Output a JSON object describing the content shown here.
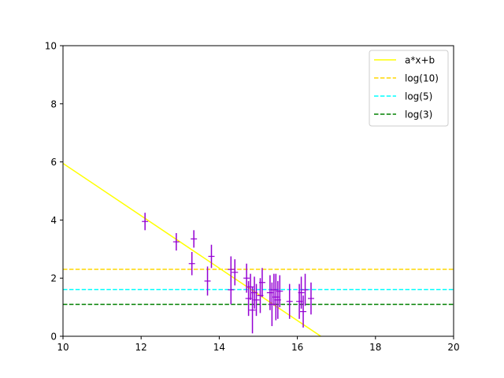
{
  "chart_data": {
    "type": "scatter",
    "title": "",
    "xlabel": "",
    "ylabel": "",
    "xlim": [
      10,
      20
    ],
    "ylim": [
      0,
      10
    ],
    "xticks": [
      10,
      12,
      14,
      16,
      18,
      20
    ],
    "yticks": [
      0,
      2,
      4,
      6,
      8,
      10
    ],
    "grid": false,
    "legend_position": "top-right",
    "fit_line": {
      "name": "a*x+b",
      "color": "#ffff00",
      "x": [
        10,
        16.6
      ],
      "y": [
        5.95,
        0.0
      ]
    },
    "hlines": [
      {
        "name": "log(10)",
        "value": 2.303,
        "color": "#ffd700",
        "style": "dashed"
      },
      {
        "name": "log(5)",
        "value": 1.609,
        "color": "#00ffff",
        "style": "dashed"
      },
      {
        "name": "log(3)",
        "value": 1.099,
        "color": "#008000",
        "style": "dashed"
      }
    ],
    "errorbar_series": {
      "color": "#9400d3",
      "points": [
        {
          "x": 12.1,
          "y": 3.95,
          "err": 0.3
        },
        {
          "x": 12.9,
          "y": 3.25,
          "err": 0.3
        },
        {
          "x": 13.3,
          "y": 2.5,
          "err": 0.4
        },
        {
          "x": 13.35,
          "y": 3.35,
          "err": 0.3
        },
        {
          "x": 13.7,
          "y": 1.9,
          "err": 0.5
        },
        {
          "x": 13.8,
          "y": 2.75,
          "err": 0.4
        },
        {
          "x": 14.3,
          "y": 1.6,
          "err": 0.5
        },
        {
          "x": 14.3,
          "y": 2.3,
          "err": 0.45
        },
        {
          "x": 14.4,
          "y": 2.2,
          "err": 0.45
        },
        {
          "x": 14.7,
          "y": 2.0,
          "err": 0.5
        },
        {
          "x": 14.75,
          "y": 1.3,
          "err": 0.6
        },
        {
          "x": 14.8,
          "y": 1.7,
          "err": 0.45
        },
        {
          "x": 14.85,
          "y": 0.9,
          "err": 0.8
        },
        {
          "x": 14.9,
          "y": 1.5,
          "err": 0.55
        },
        {
          "x": 14.95,
          "y": 1.25,
          "err": 0.55
        },
        {
          "x": 15.05,
          "y": 1.4,
          "err": 0.6
        },
        {
          "x": 15.1,
          "y": 1.85,
          "err": 0.5
        },
        {
          "x": 15.3,
          "y": 1.5,
          "err": 0.6
        },
        {
          "x": 15.35,
          "y": 1.1,
          "err": 0.75
        },
        {
          "x": 15.4,
          "y": 1.6,
          "err": 0.55
        },
        {
          "x": 15.45,
          "y": 1.35,
          "err": 0.8
        },
        {
          "x": 15.5,
          "y": 1.25,
          "err": 0.65
        },
        {
          "x": 15.55,
          "y": 1.55,
          "err": 0.55
        },
        {
          "x": 15.8,
          "y": 1.2,
          "err": 0.6
        },
        {
          "x": 16.05,
          "y": 1.2,
          "err": 0.6
        },
        {
          "x": 16.1,
          "y": 1.5,
          "err": 0.55
        },
        {
          "x": 16.15,
          "y": 0.85,
          "err": 0.55
        },
        {
          "x": 16.2,
          "y": 1.6,
          "err": 0.55
        },
        {
          "x": 16.35,
          "y": 1.3,
          "err": 0.55
        }
      ]
    }
  }
}
